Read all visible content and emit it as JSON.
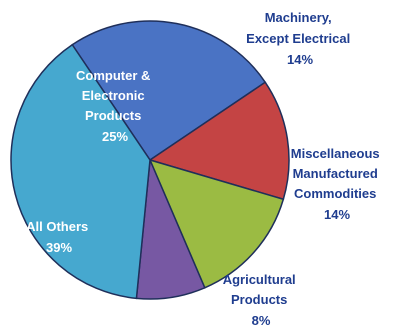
{
  "chart_data": {
    "type": "pie",
    "slices": [
      {
        "label_lines": [
          "Computer &",
          "Electronic",
          "Products"
        ],
        "value": 25,
        "value_text": "25%",
        "color": "#4a73c4"
      },
      {
        "label_lines": [
          "Machinery,",
          "Except Electrical"
        ],
        "value": 14,
        "value_text": "14%",
        "color": "#c44444"
      },
      {
        "label_lines": [
          "Miscellaneous",
          "Manufactured",
          "Commodities"
        ],
        "value": 14,
        "value_text": "14%",
        "color": "#9bbb43"
      },
      {
        "label_lines": [
          "Agricultural",
          "Products"
        ],
        "value": 8,
        "value_text": "8%",
        "color": "#7758a3"
      },
      {
        "label_lines": [
          "All Others"
        ],
        "value": 39,
        "value_text": "39%",
        "color": "#46a8cf"
      }
    ]
  }
}
